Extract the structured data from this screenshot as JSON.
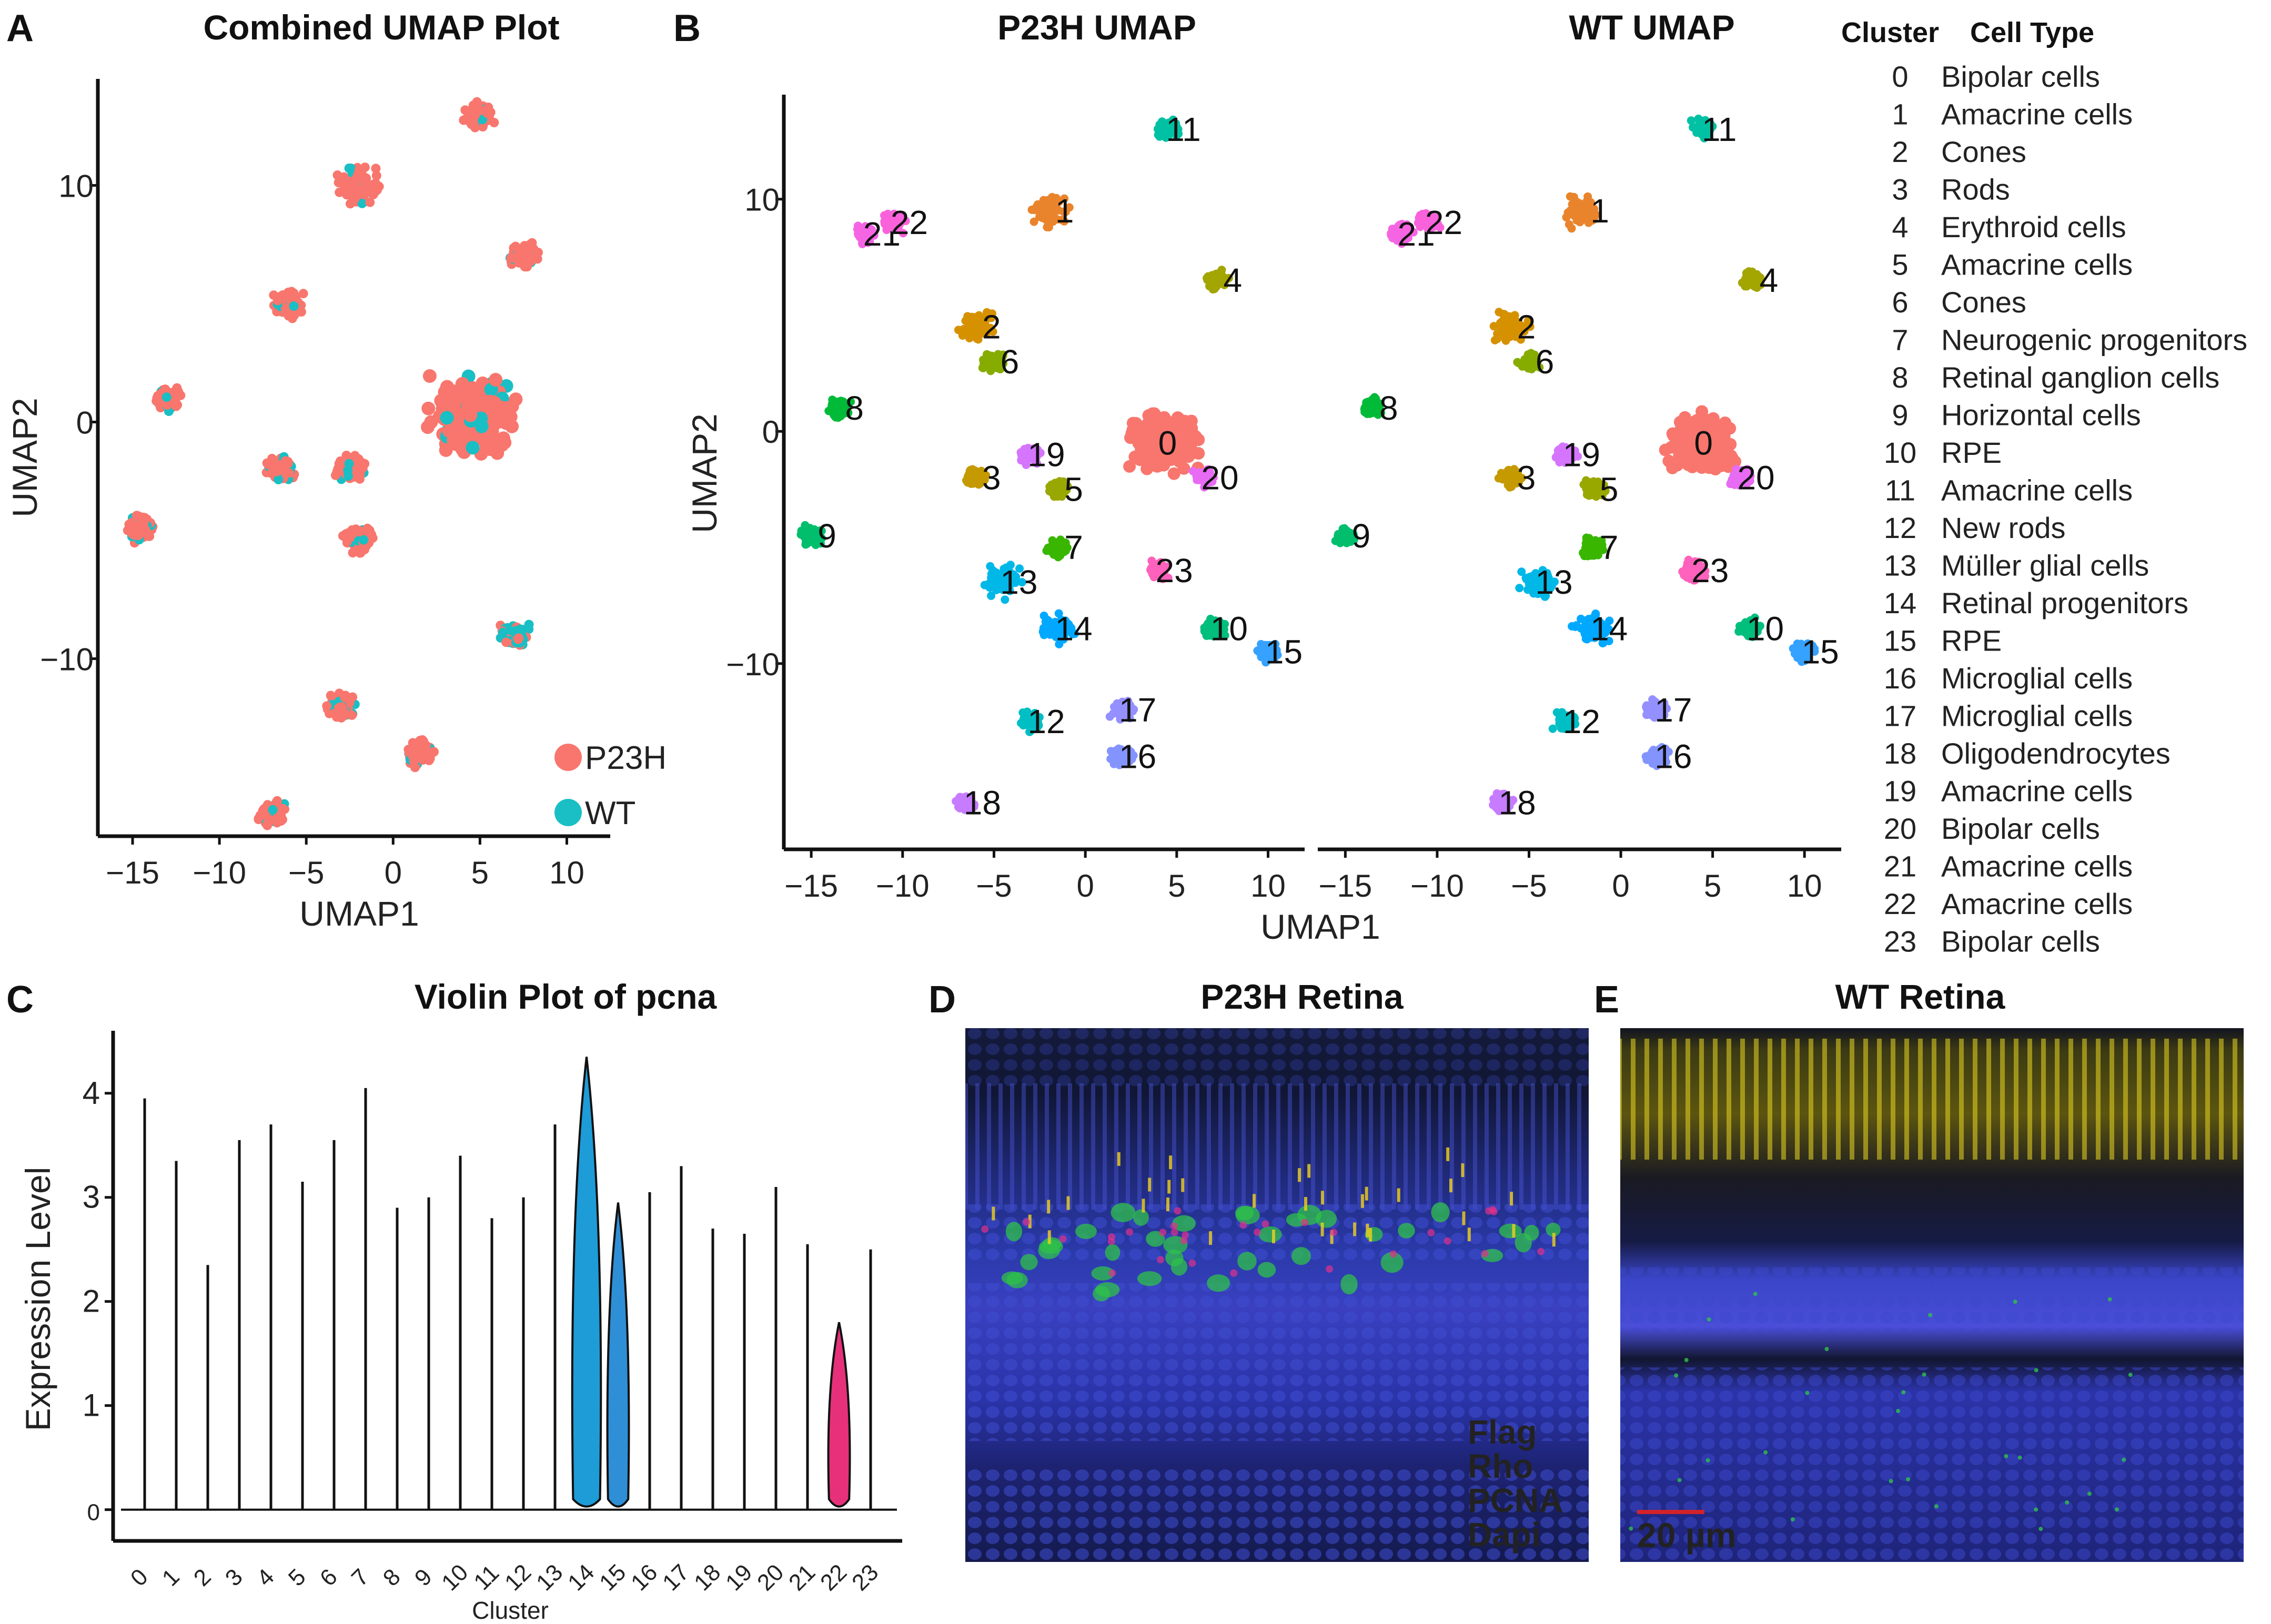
{
  "panels": {
    "A": {
      "label": "A",
      "title": "Combined UMAP Plot",
      "xlabel": "UMAP1",
      "ylabel": "UMAP2"
    },
    "B": {
      "label": "B",
      "title_left": "P23H UMAP",
      "title_right": "WT UMAP",
      "xlabel": "UMAP1",
      "ylabel": "UMAP2"
    },
    "C": {
      "label": "C",
      "title": "Violin Plot of pcna",
      "xlabel": "Cluster",
      "ylabel": "Expression Level"
    },
    "D": {
      "label": "D",
      "title": "P23H Retina"
    },
    "E": {
      "label": "E",
      "title": "WT Retina"
    }
  },
  "legend_A": [
    {
      "label": "P23H",
      "color": "#F8766D"
    },
    {
      "label": "WT",
      "color": "#19BFC4"
    }
  ],
  "cluster_table": {
    "header_cluster": "Cluster",
    "header_type": "Cell Type",
    "rows": [
      {
        "num": "0",
        "type": "Bipolar cells"
      },
      {
        "num": "1",
        "type": "Amacrine cells"
      },
      {
        "num": "2",
        "type": "Cones"
      },
      {
        "num": "3",
        "type": "Rods"
      },
      {
        "num": "4",
        "type": "Erythroid cells"
      },
      {
        "num": "5",
        "type": "Amacrine cells"
      },
      {
        "num": "6",
        "type": "Cones"
      },
      {
        "num": "7",
        "type": "Neurogenic progenitors"
      },
      {
        "num": "8",
        "type": "Retinal ganglion cells"
      },
      {
        "num": "9",
        "type": "Horizontal cells"
      },
      {
        "num": "10",
        "type": "RPE"
      },
      {
        "num": "11",
        "type": "Amacrine cells"
      },
      {
        "num": "12",
        "type": "New rods"
      },
      {
        "num": "13",
        "type": "Müller glial cells"
      },
      {
        "num": "14",
        "type": "Retinal progenitors"
      },
      {
        "num": "15",
        "type": "RPE"
      },
      {
        "num": "16",
        "type": "Microglial cells"
      },
      {
        "num": "17",
        "type": "Microglial cells"
      },
      {
        "num": "18",
        "type": "Oligodendrocytes"
      },
      {
        "num": "19",
        "type": "Amacrine cells"
      },
      {
        "num": "20",
        "type": "Bipolar cells"
      },
      {
        "num": "21",
        "type": "Amacrine cells"
      },
      {
        "num": "22",
        "type": "Amacrine cells"
      },
      {
        "num": "23",
        "type": "Bipolar cells"
      }
    ]
  },
  "micrograph_D": {
    "channels": [
      {
        "label": "Flag",
        "color": "#E0308C"
      },
      {
        "label": "Rho",
        "color": "#F2D21C"
      },
      {
        "label": "PCNA",
        "color": "#2FC24A"
      },
      {
        "label": "Dapi",
        "color": "#3344C8"
      }
    ]
  },
  "micrograph_E": {
    "scalebar": "20 µm",
    "scalebar_color": "#D2232A"
  },
  "chart_data": [
    {
      "type": "scatter",
      "id": "A",
      "title": "Combined UMAP Plot",
      "xlabel": "UMAP1",
      "ylabel": "UMAP2",
      "xlim": [
        -17,
        12.5
      ],
      "ylim": [
        -17.5,
        14.5
      ],
      "xticks": [
        -15,
        -10,
        -5,
        0,
        5,
        10
      ],
      "xtick_labels": [
        "−15",
        "−10",
        "−5",
        "0",
        "5",
        "10"
      ],
      "yticks": [
        -10,
        0,
        10
      ],
      "ytick_labels": [
        "−10",
        "0",
        "10"
      ],
      "series": [
        {
          "name": "P23H",
          "color": "#F8766D"
        },
        {
          "name": "WT",
          "color": "#19BFC4"
        }
      ],
      "clusters": [
        {
          "id": "0",
          "x": 4.5,
          "y": 0.3
        },
        {
          "id": "1",
          "x": -2,
          "y": 10
        },
        {
          "id": "2",
          "x": -6,
          "y": 5
        },
        {
          "id": "3",
          "x": -6.5,
          "y": -2
        },
        {
          "id": "4",
          "x": 7.5,
          "y": 7
        },
        {
          "id": "5",
          "x": -2.5,
          "y": -2
        },
        {
          "id": "7",
          "x": -2,
          "y": -5
        },
        {
          "id": "8",
          "x": -13,
          "y": 1
        },
        {
          "id": "9",
          "x": -14.5,
          "y": -4.5
        },
        {
          "id": "10",
          "x": 7,
          "y": -9
        },
        {
          "id": "11",
          "x": 5,
          "y": 13
        },
        {
          "id": "12",
          "x": -3,
          "y": -12
        },
        {
          "id": "16",
          "x": 1.5,
          "y": -14
        },
        {
          "id": "18",
          "x": -7,
          "y": -16.5
        }
      ]
    },
    {
      "type": "scatter",
      "id": "B-P23H",
      "title": "P23H UMAP",
      "xlim": [
        -16.5,
        12
      ],
      "ylim": [
        -18,
        14.5
      ],
      "xticks": [
        -15,
        -10,
        -5,
        0,
        5,
        10
      ],
      "xtick_labels": [
        "−15",
        "−10",
        "−5",
        "0",
        "5",
        "10"
      ],
      "yticks": [
        -10,
        0,
        10
      ],
      "ytick_labels": [
        "−10",
        "0",
        "10"
      ],
      "clusters": [
        {
          "id": "0",
          "x": 4.5,
          "y": -0.5,
          "color": "#F8766D"
        },
        {
          "id": "1",
          "x": -2,
          "y": 9.5,
          "color": "#E9842C"
        },
        {
          "id": "2",
          "x": -6,
          "y": 4.5,
          "color": "#D69100"
        },
        {
          "id": "3",
          "x": -6,
          "y": -2,
          "color": "#C49A00"
        },
        {
          "id": "4",
          "x": 7.2,
          "y": 6.5,
          "color": "#A3A500"
        },
        {
          "id": "5",
          "x": -1.5,
          "y": -2.5,
          "color": "#99A800"
        },
        {
          "id": "6",
          "x": -5,
          "y": 3,
          "color": "#86AC00"
        },
        {
          "id": "7",
          "x": -1.5,
          "y": -5,
          "color": "#39B600"
        },
        {
          "id": "8",
          "x": -13.5,
          "y": 1,
          "color": "#00BA38"
        },
        {
          "id": "9",
          "x": -15,
          "y": -4.5,
          "color": "#00BE6C"
        },
        {
          "id": "10",
          "x": 7,
          "y": -8.5,
          "color": "#00BF7D"
        },
        {
          "id": "11",
          "x": 4.5,
          "y": 13,
          "color": "#00C1A3"
        },
        {
          "id": "12",
          "x": -3,
          "y": -12.5,
          "color": "#00BFC4"
        },
        {
          "id": "13",
          "x": -4.5,
          "y": -6.5,
          "color": "#00B8E7"
        },
        {
          "id": "14",
          "x": -1.5,
          "y": -8.5,
          "color": "#00A9FF"
        },
        {
          "id": "15",
          "x": 10,
          "y": -9.5,
          "color": "#35A2FF"
        },
        {
          "id": "16",
          "x": 2,
          "y": -14,
          "color": "#8494FF"
        },
        {
          "id": "17",
          "x": 2,
          "y": -12,
          "color": "#9590FF"
        },
        {
          "id": "18",
          "x": -6.5,
          "y": -16,
          "color": "#C77CFF"
        },
        {
          "id": "19",
          "x": -3,
          "y": -1,
          "color": "#D575FE"
        },
        {
          "id": "20",
          "x": 6.5,
          "y": -2,
          "color": "#E76BF3"
        },
        {
          "id": "21",
          "x": -12,
          "y": 8.5,
          "color": "#F564E3"
        },
        {
          "id": "22",
          "x": -10.5,
          "y": 9,
          "color": "#FA62DB"
        },
        {
          "id": "23",
          "x": 4,
          "y": -6,
          "color": "#FF62BC"
        }
      ]
    },
    {
      "type": "scatter",
      "id": "B-WT",
      "title": "WT UMAP",
      "xlim": [
        -16.5,
        12
      ],
      "ylim": [
        -18,
        14.5
      ],
      "xticks": [
        -15,
        -10,
        -5,
        0,
        5,
        10
      ],
      "xtick_labels": [
        "−15",
        "−10",
        "−5",
        "0",
        "5",
        "10"
      ],
      "clusters": [
        {
          "id": "0",
          "x": 4.5,
          "y": -0.5,
          "color": "#F8766D"
        },
        {
          "id": "1",
          "x": -2,
          "y": 9.5,
          "color": "#E9842C"
        },
        {
          "id": "2",
          "x": -6,
          "y": 4.5,
          "color": "#D69100"
        },
        {
          "id": "3",
          "x": -6,
          "y": -2,
          "color": "#C49A00"
        },
        {
          "id": "4",
          "x": 7.2,
          "y": 6.5,
          "color": "#A3A500"
        },
        {
          "id": "5",
          "x": -1.5,
          "y": -2.5,
          "color": "#99A800"
        },
        {
          "id": "6",
          "x": -5,
          "y": 3,
          "color": "#86AC00"
        },
        {
          "id": "7",
          "x": -1.5,
          "y": -5,
          "color": "#39B600"
        },
        {
          "id": "8",
          "x": -13.5,
          "y": 1,
          "color": "#00BA38"
        },
        {
          "id": "9",
          "x": -15,
          "y": -4.5,
          "color": "#00BE6C"
        },
        {
          "id": "10",
          "x": 7,
          "y": -8.5,
          "color": "#00BF7D"
        },
        {
          "id": "11",
          "x": 4.5,
          "y": 13,
          "color": "#00C1A3"
        },
        {
          "id": "12",
          "x": -3,
          "y": -12.5,
          "color": "#00BFC4"
        },
        {
          "id": "13",
          "x": -4.5,
          "y": -6.5,
          "color": "#00B8E7"
        },
        {
          "id": "14",
          "x": -1.5,
          "y": -8.5,
          "color": "#00A9FF"
        },
        {
          "id": "15",
          "x": 10,
          "y": -9.5,
          "color": "#35A2FF"
        },
        {
          "id": "16",
          "x": 2,
          "y": -14,
          "color": "#8494FF"
        },
        {
          "id": "17",
          "x": 2,
          "y": -12,
          "color": "#9590FF"
        },
        {
          "id": "18",
          "x": -6.5,
          "y": -16,
          "color": "#C77CFF"
        },
        {
          "id": "19",
          "x": -3,
          "y": -1,
          "color": "#D575FE"
        },
        {
          "id": "20",
          "x": 6.5,
          "y": -2,
          "color": "#E76BF3"
        },
        {
          "id": "21",
          "x": -12,
          "y": 8.5,
          "color": "#F564E3"
        },
        {
          "id": "22",
          "x": -10.5,
          "y": 9,
          "color": "#FA62DB"
        },
        {
          "id": "23",
          "x": 4,
          "y": -6,
          "color": "#FF62BC"
        }
      ]
    },
    {
      "type": "violin",
      "id": "C",
      "title": "Violin Plot of pcna",
      "xlabel": "Cluster",
      "ylabel": "Expression Level",
      "ylim": [
        -0.3,
        4.6
      ],
      "yticks": [
        0,
        1,
        2,
        3,
        4
      ],
      "ytick_labels": [
        "0",
        "1",
        "2",
        "3",
        "4"
      ],
      "categories": [
        "0",
        "1",
        "2",
        "3",
        "4",
        "5",
        "6",
        "7",
        "8",
        "9",
        "10",
        "11",
        "12",
        "13",
        "14",
        "15",
        "16",
        "17",
        "18",
        "19",
        "20",
        "21",
        "22",
        "23"
      ],
      "max_values": [
        3.95,
        3.35,
        2.35,
        3.55,
        3.7,
        3.15,
        3.55,
        4.05,
        2.9,
        3.0,
        3.4,
        2.8,
        3.0,
        3.7,
        4.35,
        2.95,
        3.05,
        3.3,
        2.7,
        2.65,
        3.1,
        2.55,
        1.8,
        2.5
      ],
      "filled": [
        {
          "category": "14",
          "color": "#1E9CD8"
        },
        {
          "category": "15",
          "color": "#2E8FD6"
        },
        {
          "category": "22",
          "color": "#E6317A"
        }
      ]
    }
  ]
}
